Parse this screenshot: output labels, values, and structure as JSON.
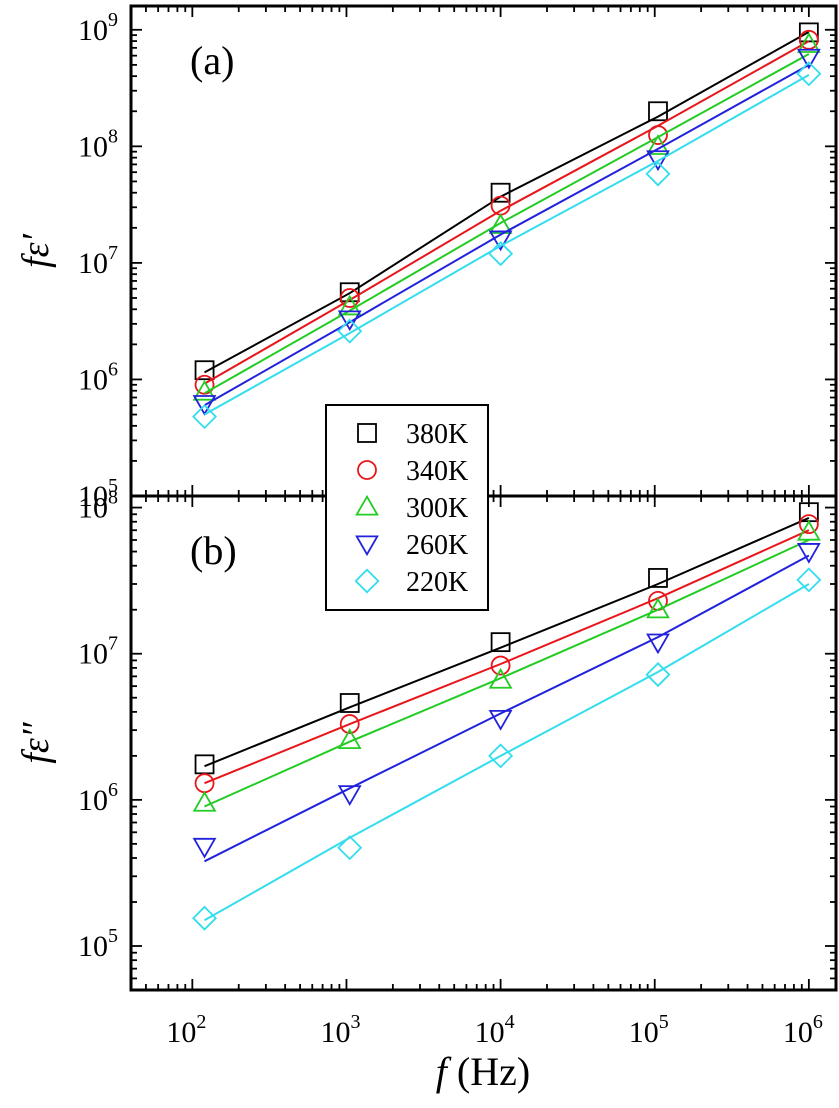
{
  "chart_data": [
    {
      "type": "scatter",
      "panel_label": "(a)",
      "ylabel": "fε′",
      "xscale": "log",
      "yscale": "log",
      "xlim": [
        40,
        1500000
      ],
      "ylim": [
        100000,
        1600000000
      ],
      "x_ticks": [
        {
          "value": 100,
          "base": "10",
          "exp": "2"
        },
        {
          "value": 1000,
          "base": "10",
          "exp": "3"
        },
        {
          "value": 10000,
          "base": "10",
          "exp": "4"
        },
        {
          "value": 100000,
          "base": "10",
          "exp": "5"
        },
        {
          "value": 1000000,
          "base": "10",
          "exp": "6"
        }
      ],
      "y_ticks": [
        {
          "value": 100000,
          "base": "10",
          "exp": "5"
        },
        {
          "value": 1000000,
          "base": "10",
          "exp": "6"
        },
        {
          "value": 10000000,
          "base": "10",
          "exp": "7"
        },
        {
          "value": 100000000,
          "base": "10",
          "exp": "8"
        },
        {
          "value": 1000000000,
          "base": "10",
          "exp": "9"
        }
      ],
      "x": [
        120,
        1050,
        10000,
        105000,
        1000000
      ],
      "series": [
        {
          "name": "380K",
          "marker": "square",
          "color": "#000000",
          "values": [
            1200000,
            5600000,
            40000000,
            200000000,
            950000000
          ],
          "fit": [
            1150000,
            5500000,
            37000000,
            180000000,
            960000000
          ]
        },
        {
          "name": "340K",
          "marker": "circle",
          "color": "#e8161a",
          "values": [
            900000,
            5000000,
            31000000,
            125000000,
            820000000
          ],
          "fit": [
            920000,
            4800000,
            28000000,
            150000000,
            800000000
          ]
        },
        {
          "name": "300K",
          "marker": "triangle-up",
          "color": "#22cc22",
          "values": [
            780000,
            4200000,
            21000000,
            100000000,
            750000000
          ],
          "fit": [
            760000,
            3900000,
            22000000,
            120000000,
            620000000
          ]
        },
        {
          "name": "260K",
          "marker": "triangle-down",
          "color": "#2222dd",
          "values": [
            620000,
            3300000,
            16000000,
            78000000,
            580000000
          ],
          "fit": [
            600000,
            3100000,
            17500000,
            95000000,
            500000000
          ]
        },
        {
          "name": "220K",
          "marker": "diamond",
          "color": "#33ddee",
          "values": [
            480000,
            2600000,
            12000000,
            58000000,
            420000000
          ],
          "fit": [
            500000,
            2500000,
            14000000,
            75000000,
            410000000
          ]
        }
      ]
    },
    {
      "type": "scatter",
      "panel_label": "(b)",
      "ylabel": "fε″",
      "xlabel_italic": "f",
      "xlabel_rest": " (Hz)",
      "xscale": "log",
      "yscale": "log",
      "xlim": [
        40,
        1500000
      ],
      "ylim": [
        50000,
        120000000
      ],
      "x_ticks": [
        {
          "value": 100,
          "base": "10",
          "exp": "2"
        },
        {
          "value": 1000,
          "base": "10",
          "exp": "3"
        },
        {
          "value": 10000,
          "base": "10",
          "exp": "4"
        },
        {
          "value": 100000,
          "base": "10",
          "exp": "5"
        },
        {
          "value": 1000000,
          "base": "10",
          "exp": "6"
        }
      ],
      "y_ticks": [
        {
          "value": 100000,
          "base": "10",
          "exp": "5"
        },
        {
          "value": 1000000,
          "base": "10",
          "exp": "6"
        },
        {
          "value": 10000000,
          "base": "10",
          "exp": "7"
        },
        {
          "value": 100000000,
          "base": "10",
          "exp": "8"
        }
      ],
      "x": [
        120,
        1050,
        10000,
        105000,
        1000000
      ],
      "series": [
        {
          "name": "380K",
          "marker": "square",
          "color": "#000000",
          "values": [
            1750000,
            4600000,
            12000000,
            33000000,
            93000000
          ],
          "fit": [
            1700000,
            4300000,
            11000000,
            30000000,
            85000000
          ]
        },
        {
          "name": "340K",
          "marker": "circle",
          "color": "#e8161a",
          "values": [
            1300000,
            3300000,
            8300000,
            23000000,
            77000000
          ],
          "fit": [
            1300000,
            3300000,
            8500000,
            24000000,
            70000000
          ]
        },
        {
          "name": "300K",
          "marker": "triangle-up",
          "color": "#22cc22",
          "values": [
            950000,
            2550000,
            6600000,
            20000000,
            68000000
          ],
          "fit": [
            900000,
            2500000,
            6800000,
            20000000,
            60000000
          ]
        },
        {
          "name": "260K",
          "marker": "triangle-down",
          "color": "#2222dd",
          "values": [
            480000,
            1100000,
            3600000,
            12000000,
            50000000
          ],
          "fit": [
            380000,
            1200000,
            3900000,
            13000000,
            47000000
          ]
        },
        {
          "name": "220K",
          "marker": "diamond",
          "color": "#33ddee",
          "values": [
            155000,
            470000,
            2000000,
            7200000,
            32000000
          ],
          "fit": [
            150000,
            550000,
            2000000,
            7500000,
            30000000
          ]
        }
      ]
    }
  ],
  "legend": [
    "380K",
    "340K",
    "300K",
    "260K",
    "220K"
  ]
}
